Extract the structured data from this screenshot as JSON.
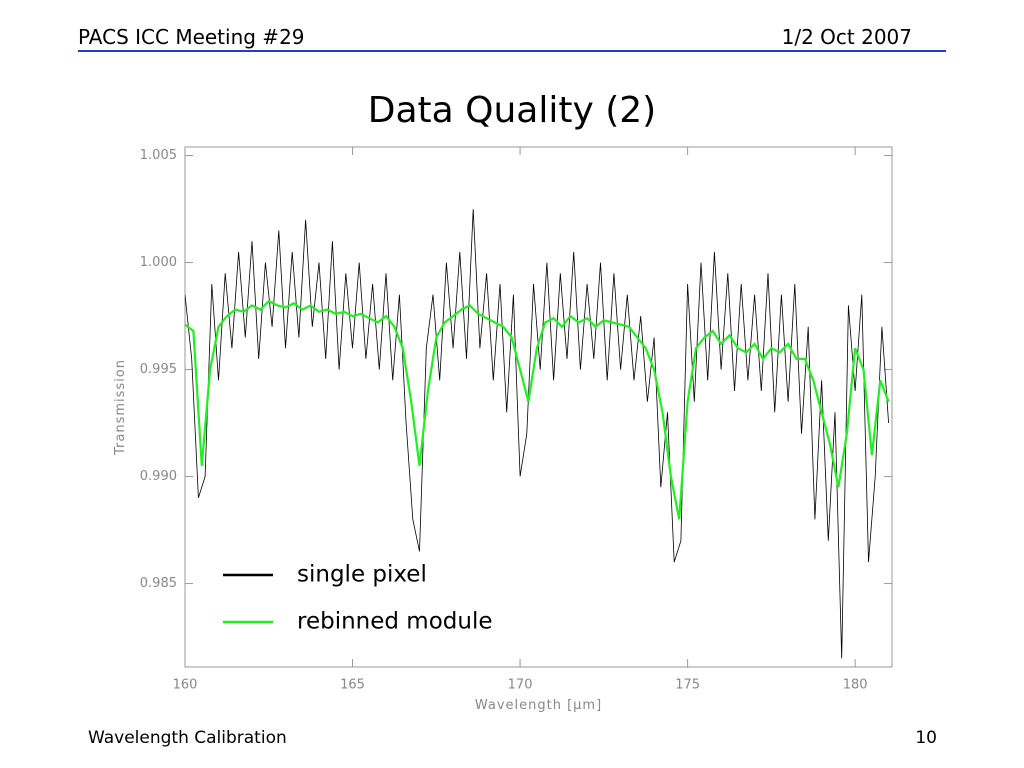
{
  "header": {
    "left": "PACS ICC Meeting #29",
    "right": "1/2 Oct 2007"
  },
  "title": "Data Quality (2)",
  "footer": {
    "left": "Wavelength Calibration",
    "right": "10"
  },
  "chart_data": {
    "type": "line",
    "xlabel": "Wavelength [μm]",
    "ylabel": "Transmission",
    "xlim": [
      160,
      181.1
    ],
    "ylim": [
      0.9811,
      1.0054
    ],
    "xticks": [
      160,
      165,
      170,
      175,
      180
    ],
    "yticks": [
      {
        "value": 0.985,
        "label": "0.985"
      },
      {
        "value": 0.99,
        "label": "0.990"
      },
      {
        "value": 0.995,
        "label": "0.995"
      },
      {
        "value": 1,
        "label": "1.000"
      },
      {
        "value": 1.005,
        "label": "1.005"
      }
    ],
    "series": [
      {
        "name": "single pixel",
        "color": "#000000",
        "x": [
          160.0,
          160.2,
          160.4,
          160.6,
          160.8,
          161.0,
          161.2,
          161.4,
          161.6,
          161.8,
          162.0,
          162.2,
          162.4,
          162.6,
          162.8,
          163.0,
          163.2,
          163.4,
          163.6,
          163.8,
          164.0,
          164.2,
          164.4,
          164.6,
          164.8,
          165.0,
          165.2,
          165.4,
          165.6,
          165.8,
          166.0,
          166.2,
          166.4,
          166.6,
          166.8,
          167.0,
          167.2,
          167.4,
          167.6,
          167.8,
          168.0,
          168.2,
          168.4,
          168.6,
          168.8,
          169.0,
          169.2,
          169.4,
          169.6,
          169.8,
          170.0,
          170.2,
          170.4,
          170.6,
          170.8,
          171.0,
          171.2,
          171.4,
          171.6,
          171.8,
          172.0,
          172.2,
          172.4,
          172.6,
          172.8,
          173.0,
          173.2,
          173.4,
          173.6,
          173.8,
          174.0,
          174.2,
          174.4,
          174.6,
          174.8,
          175.0,
          175.2,
          175.4,
          175.6,
          175.8,
          176.0,
          176.2,
          176.4,
          176.6,
          176.8,
          177.0,
          177.2,
          177.4,
          177.6,
          177.8,
          178.0,
          178.2,
          178.4,
          178.6,
          178.8,
          179.0,
          179.2,
          179.4,
          179.6,
          179.8,
          180.0,
          180.2,
          180.4,
          180.6,
          180.8,
          181.0
        ],
        "values": [
          0.9985,
          0.9955,
          0.989,
          0.99,
          0.999,
          0.9945,
          0.9995,
          0.996,
          1.0005,
          0.9965,
          1.001,
          0.9955,
          1.0,
          0.997,
          1.0015,
          0.996,
          1.0005,
          0.9965,
          1.002,
          0.997,
          1.0,
          0.9955,
          1.001,
          0.995,
          0.9995,
          0.996,
          1.0,
          0.9955,
          0.999,
          0.995,
          0.9995,
          0.9945,
          0.9985,
          0.9925,
          0.988,
          0.9865,
          0.996,
          0.9985,
          0.9945,
          1.0,
          0.996,
          1.0005,
          0.9955,
          1.0025,
          0.996,
          0.9995,
          0.9945,
          0.999,
          0.993,
          0.9985,
          0.99,
          0.992,
          0.999,
          0.995,
          1.0,
          0.9945,
          0.9995,
          0.9955,
          1.0005,
          0.995,
          0.999,
          0.9955,
          1.0,
          0.9945,
          0.9995,
          0.995,
          0.9985,
          0.9945,
          0.9975,
          0.9935,
          0.9965,
          0.9895,
          0.993,
          0.986,
          0.987,
          0.999,
          0.9935,
          1.0,
          0.9945,
          1.0005,
          0.995,
          0.9995,
          0.994,
          0.999,
          0.9945,
          0.9985,
          0.994,
          0.9995,
          0.993,
          0.9985,
          0.9935,
          0.999,
          0.992,
          0.997,
          0.988,
          0.9945,
          0.987,
          0.993,
          0.9815,
          0.998,
          0.994,
          0.9985,
          0.986,
          0.99,
          0.997,
          0.9925
        ]
      },
      {
        "name": "rebinned module",
        "color": "#22ee22",
        "x": [
          160.0,
          160.25,
          160.5,
          160.75,
          161.0,
          161.25,
          161.5,
          161.75,
          162.0,
          162.25,
          162.5,
          162.75,
          163.0,
          163.25,
          163.5,
          163.75,
          164.0,
          164.25,
          164.5,
          164.75,
          165.0,
          165.25,
          165.5,
          165.75,
          166.0,
          166.25,
          166.5,
          166.75,
          167.0,
          167.25,
          167.5,
          167.75,
          168.0,
          168.25,
          168.5,
          168.75,
          169.0,
          169.25,
          169.5,
          169.75,
          170.0,
          170.25,
          170.5,
          170.75,
          171.0,
          171.25,
          171.5,
          171.75,
          172.0,
          172.25,
          172.5,
          172.75,
          173.0,
          173.25,
          173.5,
          173.75,
          174.0,
          174.25,
          174.5,
          174.75,
          175.0,
          175.25,
          175.5,
          175.75,
          176.0,
          176.25,
          176.5,
          176.75,
          177.0,
          177.25,
          177.5,
          177.75,
          178.0,
          178.25,
          178.5,
          178.75,
          179.0,
          179.25,
          179.5,
          179.75,
          180.0,
          180.25,
          180.5,
          180.75,
          181.0
        ],
        "values": [
          0.9971,
          0.9968,
          0.9905,
          0.995,
          0.997,
          0.9975,
          0.9978,
          0.9977,
          0.998,
          0.9978,
          0.9982,
          0.998,
          0.9979,
          0.9981,
          0.9978,
          0.998,
          0.9977,
          0.9978,
          0.9976,
          0.9977,
          0.9975,
          0.9976,
          0.9974,
          0.9972,
          0.9975,
          0.997,
          0.996,
          0.9935,
          0.9905,
          0.994,
          0.9965,
          0.9972,
          0.9975,
          0.9978,
          0.998,
          0.9976,
          0.9974,
          0.9972,
          0.997,
          0.9965,
          0.995,
          0.9935,
          0.996,
          0.9972,
          0.9974,
          0.997,
          0.9975,
          0.9972,
          0.9974,
          0.997,
          0.9973,
          0.9972,
          0.9971,
          0.997,
          0.9965,
          0.996,
          0.995,
          0.993,
          0.99,
          0.988,
          0.9935,
          0.996,
          0.9965,
          0.9968,
          0.9962,
          0.9966,
          0.996,
          0.9958,
          0.9962,
          0.9955,
          0.996,
          0.9958,
          0.9962,
          0.9955,
          0.9955,
          0.9945,
          0.993,
          0.9915,
          0.9895,
          0.992,
          0.996,
          0.995,
          0.991,
          0.9945,
          0.9935
        ]
      }
    ]
  }
}
